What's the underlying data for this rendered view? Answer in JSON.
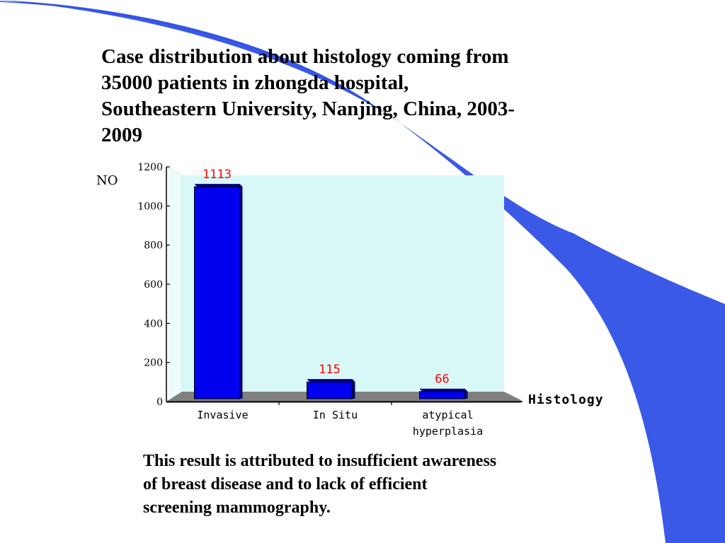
{
  "slide": {
    "title_lines": [
      "Case distribution about histology coming from",
      "35000 patients in zhongda hospital,",
      "Southeastern University, Nanjing, China, 2003-",
      "2009"
    ],
    "footnote_lines": [
      "This result is attributed to insufficient awareness",
      "of breast disease and to lack of efficient",
      "screening mammography."
    ]
  },
  "colors": {
    "bar": "#0000ee",
    "bar_dark": "#000080",
    "plot_bg": "#d8f8f8",
    "floor": "#808080",
    "label": "#ff0000",
    "deco_blue": "#2f50e6"
  },
  "chart_data": {
    "type": "bar",
    "title": "",
    "xlabel": "Histology",
    "ylabel": "NO",
    "categories": [
      "Invasive",
      "In Situ",
      "atypical hyperplasia"
    ],
    "category_lines": [
      [
        "Invasive"
      ],
      [
        "In Situ"
      ],
      [
        "atypical",
        "hyperplasia"
      ]
    ],
    "values": [
      1113,
      115,
      66
    ],
    "data_labels": [
      "1113",
      "115",
      "66"
    ],
    "ylim": [
      0,
      1200
    ],
    "yticks": [
      0,
      200,
      400,
      600,
      800,
      1000,
      1200
    ],
    "grid": false,
    "legend": "none"
  }
}
